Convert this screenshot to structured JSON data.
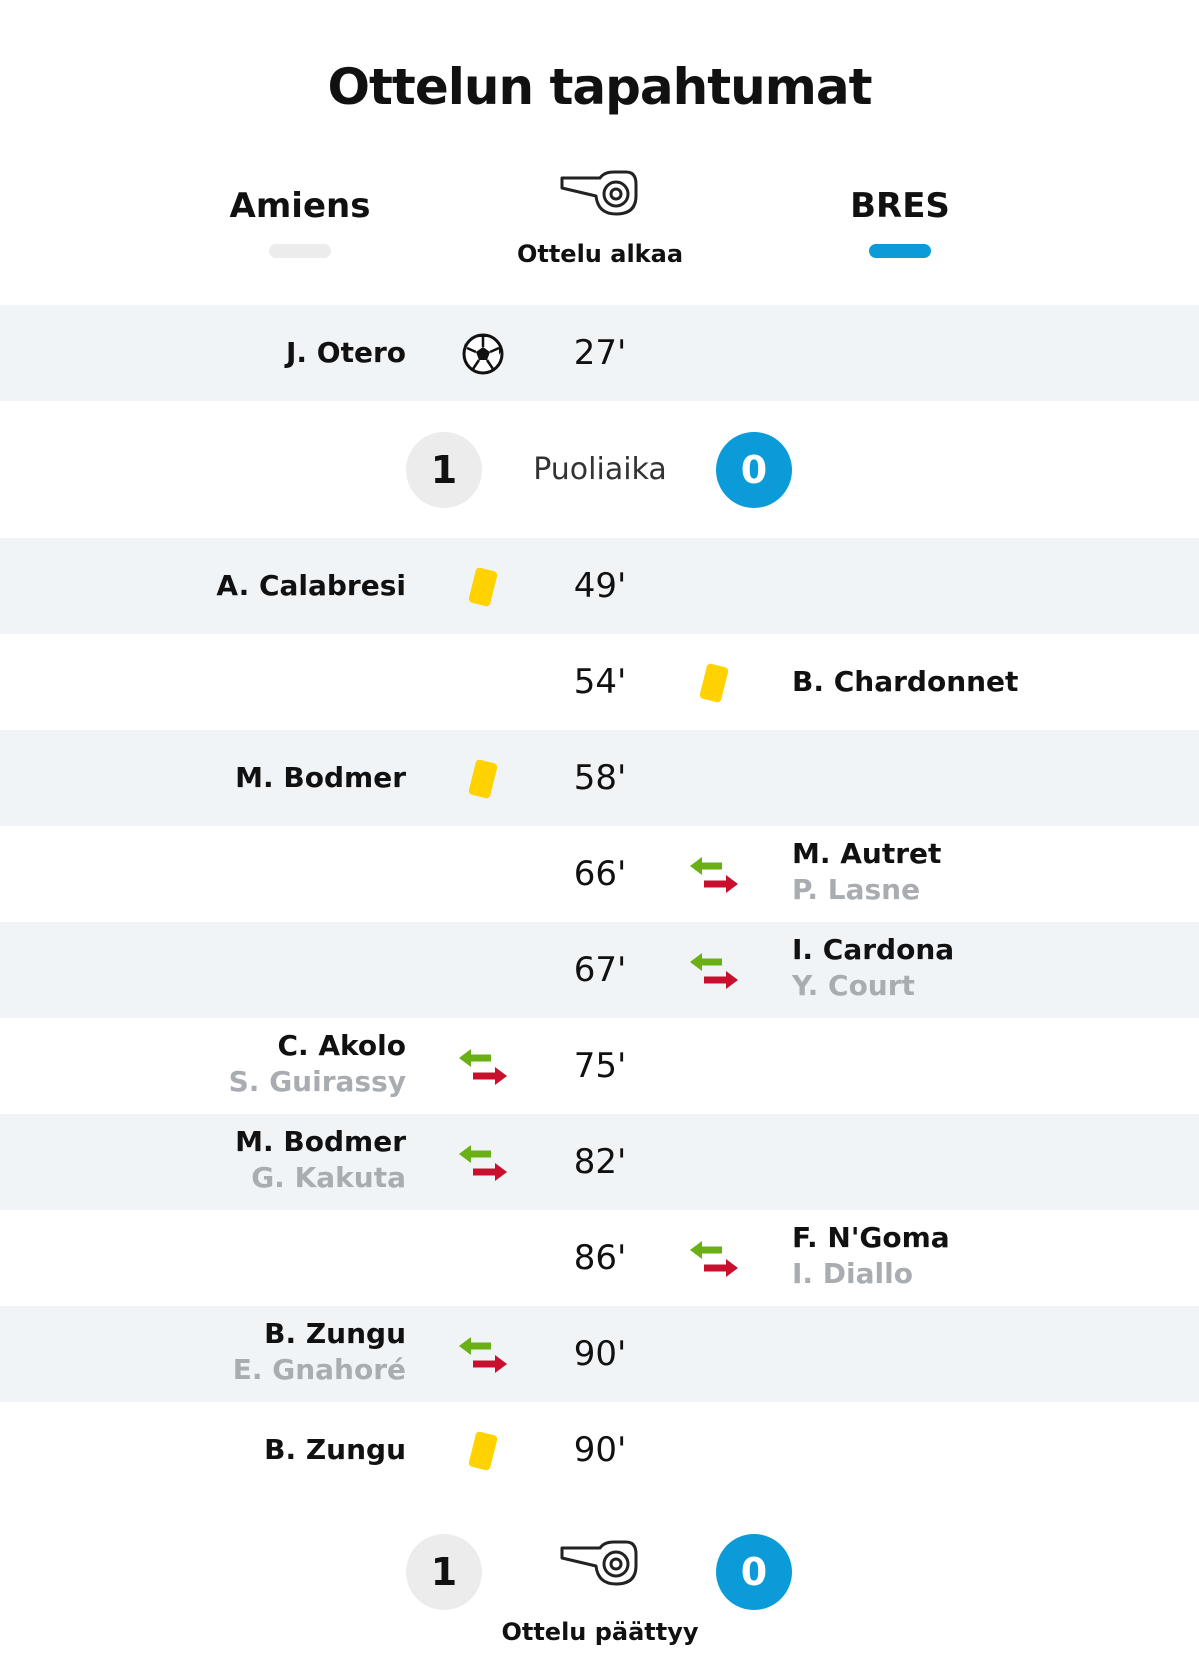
{
  "title": "Ottelun tapahtumat",
  "teams": {
    "home": {
      "name": "Amiens",
      "color": "#ececec"
    },
    "away": {
      "name": "BRES",
      "color": "#0a9bd8"
    }
  },
  "start_label": "Ottelu alkaa",
  "halftime": {
    "label": "Puoliaika",
    "home_score": "1",
    "away_score": "0"
  },
  "end": {
    "label": "Ottelu päättyy",
    "home_score": "1",
    "away_score": "0"
  },
  "colors": {
    "row_shade": "#f0f4f7",
    "yellow_card": "#ffd200",
    "sub_in_arrow": "#6aaf14",
    "sub_out_arrow": "#c8102e",
    "sub_name": "#a9adb1"
  },
  "events": [
    {
      "minute": "27'",
      "side": "home",
      "type": "goal",
      "icon": "soccer-ball-icon",
      "player": "J. Otero"
    },
    {
      "minute": "49'",
      "side": "home",
      "type": "yellow",
      "icon": "yellow-card-icon",
      "player": "A. Calabresi"
    },
    {
      "minute": "54'",
      "side": "away",
      "type": "yellow",
      "icon": "yellow-card-icon",
      "player": "B. Chardonnet"
    },
    {
      "minute": "58'",
      "side": "home",
      "type": "yellow",
      "icon": "yellow-card-icon",
      "player": "M. Bodmer"
    },
    {
      "minute": "66'",
      "side": "away",
      "type": "sub",
      "icon": "substitution-icon",
      "player": "M. Autret",
      "player_out": "P. Lasne"
    },
    {
      "minute": "67'",
      "side": "away",
      "type": "sub",
      "icon": "substitution-icon",
      "player": "I. Cardona",
      "player_out": "Y. Court"
    },
    {
      "minute": "75'",
      "side": "home",
      "type": "sub",
      "icon": "substitution-icon",
      "player": "C. Akolo",
      "player_out": "S. Guirassy"
    },
    {
      "minute": "82'",
      "side": "home",
      "type": "sub",
      "icon": "substitution-icon",
      "player": "M. Bodmer",
      "player_out": "G. Kakuta"
    },
    {
      "minute": "86'",
      "side": "away",
      "type": "sub",
      "icon": "substitution-icon",
      "player": "F. N'Goma",
      "player_out": "I. Diallo"
    },
    {
      "minute": "90'",
      "side": "home",
      "type": "sub",
      "icon": "substitution-icon",
      "player": "B. Zungu",
      "player_out": "E. Gnahoré"
    },
    {
      "minute": "90'",
      "side": "home",
      "type": "yellow",
      "icon": "yellow-card-icon",
      "player": "B. Zungu"
    }
  ]
}
